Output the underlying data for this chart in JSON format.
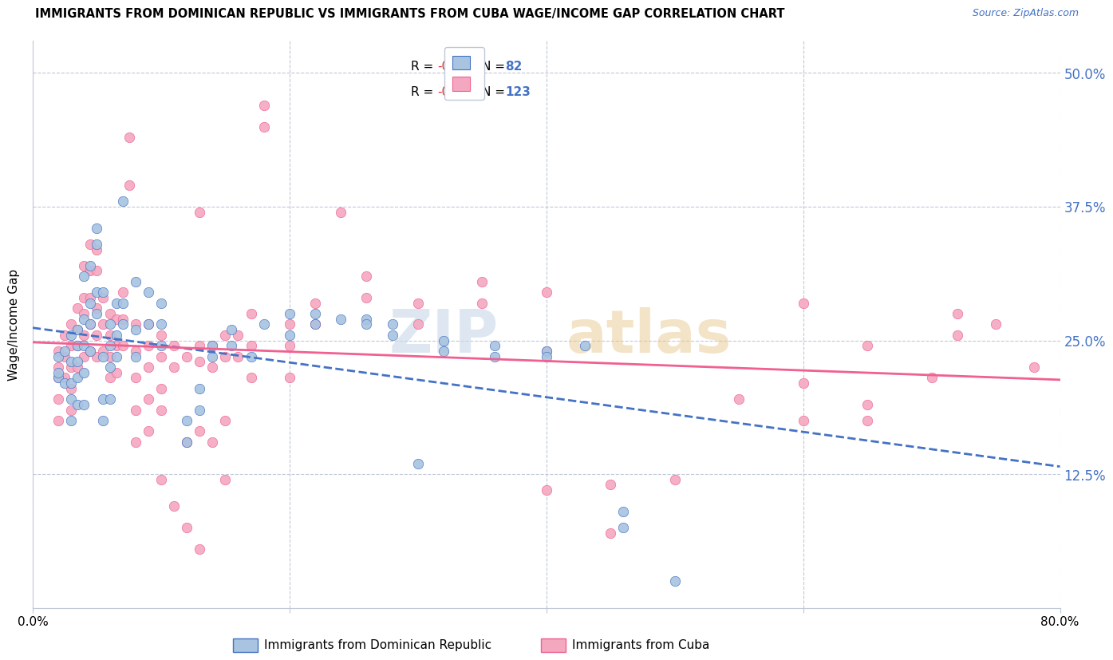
{
  "title": "IMMIGRANTS FROM DOMINICAN REPUBLIC VS IMMIGRANTS FROM CUBA WAGE/INCOME GAP CORRELATION CHART",
  "source": "Source: ZipAtlas.com",
  "ylabel": "Wage/Income Gap",
  "yticks": [
    0.0,
    0.125,
    0.25,
    0.375,
    0.5
  ],
  "ytick_labels": [
    "",
    "12.5%",
    "25.0%",
    "37.5%",
    "50.0%"
  ],
  "xlim": [
    0.0,
    0.8
  ],
  "ylim": [
    0.0,
    0.53
  ],
  "r1": "-0.006",
  "n1": "82",
  "r2": "-0.097",
  "n2": "123",
  "color_blue": "#a8c4e0",
  "color_pink": "#f4a8c0",
  "trendline_blue": "#4472c4",
  "trendline_pink": "#f06090",
  "watermark_zip_color": "#c8d8e8",
  "watermark_atlas_color": "#e8c890",
  "blue_scatter": [
    [
      0.02,
      0.235
    ],
    [
      0.02,
      0.215
    ],
    [
      0.02,
      0.22
    ],
    [
      0.025,
      0.24
    ],
    [
      0.025,
      0.21
    ],
    [
      0.03,
      0.255
    ],
    [
      0.03,
      0.23
    ],
    [
      0.03,
      0.21
    ],
    [
      0.03,
      0.195
    ],
    [
      0.03,
      0.175
    ],
    [
      0.035,
      0.26
    ],
    [
      0.035,
      0.245
    ],
    [
      0.035,
      0.23
    ],
    [
      0.035,
      0.215
    ],
    [
      0.035,
      0.19
    ],
    [
      0.04,
      0.31
    ],
    [
      0.04,
      0.27
    ],
    [
      0.04,
      0.245
    ],
    [
      0.04,
      0.22
    ],
    [
      0.04,
      0.19
    ],
    [
      0.045,
      0.32
    ],
    [
      0.045,
      0.285
    ],
    [
      0.045,
      0.265
    ],
    [
      0.045,
      0.24
    ],
    [
      0.05,
      0.355
    ],
    [
      0.05,
      0.34
    ],
    [
      0.05,
      0.295
    ],
    [
      0.05,
      0.275
    ],
    [
      0.055,
      0.295
    ],
    [
      0.055,
      0.235
    ],
    [
      0.055,
      0.195
    ],
    [
      0.055,
      0.175
    ],
    [
      0.06,
      0.265
    ],
    [
      0.06,
      0.245
    ],
    [
      0.06,
      0.225
    ],
    [
      0.06,
      0.195
    ],
    [
      0.065,
      0.285
    ],
    [
      0.065,
      0.255
    ],
    [
      0.065,
      0.235
    ],
    [
      0.07,
      0.38
    ],
    [
      0.07,
      0.285
    ],
    [
      0.07,
      0.265
    ],
    [
      0.08,
      0.305
    ],
    [
      0.08,
      0.26
    ],
    [
      0.08,
      0.235
    ],
    [
      0.09,
      0.295
    ],
    [
      0.09,
      0.265
    ],
    [
      0.1,
      0.285
    ],
    [
      0.1,
      0.265
    ],
    [
      0.1,
      0.245
    ],
    [
      0.12,
      0.175
    ],
    [
      0.12,
      0.155
    ],
    [
      0.13,
      0.205
    ],
    [
      0.13,
      0.185
    ],
    [
      0.14,
      0.245
    ],
    [
      0.14,
      0.235
    ],
    [
      0.155,
      0.26
    ],
    [
      0.155,
      0.245
    ],
    [
      0.17,
      0.235
    ],
    [
      0.18,
      0.265
    ],
    [
      0.2,
      0.275
    ],
    [
      0.2,
      0.255
    ],
    [
      0.22,
      0.275
    ],
    [
      0.22,
      0.265
    ],
    [
      0.24,
      0.27
    ],
    [
      0.26,
      0.27
    ],
    [
      0.26,
      0.265
    ],
    [
      0.28,
      0.265
    ],
    [
      0.28,
      0.255
    ],
    [
      0.3,
      0.135
    ],
    [
      0.32,
      0.25
    ],
    [
      0.32,
      0.24
    ],
    [
      0.36,
      0.245
    ],
    [
      0.36,
      0.235
    ],
    [
      0.4,
      0.24
    ],
    [
      0.4,
      0.235
    ],
    [
      0.43,
      0.245
    ],
    [
      0.46,
      0.09
    ],
    [
      0.46,
      0.075
    ],
    [
      0.5,
      0.025
    ]
  ],
  "pink_scatter": [
    [
      0.02,
      0.24
    ],
    [
      0.02,
      0.225
    ],
    [
      0.02,
      0.215
    ],
    [
      0.02,
      0.195
    ],
    [
      0.02,
      0.175
    ],
    [
      0.025,
      0.255
    ],
    [
      0.025,
      0.235
    ],
    [
      0.025,
      0.215
    ],
    [
      0.03,
      0.265
    ],
    [
      0.03,
      0.245
    ],
    [
      0.03,
      0.225
    ],
    [
      0.03,
      0.205
    ],
    [
      0.03,
      0.185
    ],
    [
      0.035,
      0.28
    ],
    [
      0.035,
      0.26
    ],
    [
      0.035,
      0.245
    ],
    [
      0.035,
      0.225
    ],
    [
      0.04,
      0.32
    ],
    [
      0.04,
      0.29
    ],
    [
      0.04,
      0.275
    ],
    [
      0.04,
      0.255
    ],
    [
      0.04,
      0.235
    ],
    [
      0.045,
      0.34
    ],
    [
      0.045,
      0.315
    ],
    [
      0.045,
      0.29
    ],
    [
      0.045,
      0.265
    ],
    [
      0.045,
      0.24
    ],
    [
      0.05,
      0.335
    ],
    [
      0.05,
      0.315
    ],
    [
      0.05,
      0.28
    ],
    [
      0.05,
      0.255
    ],
    [
      0.05,
      0.235
    ],
    [
      0.055,
      0.29
    ],
    [
      0.055,
      0.265
    ],
    [
      0.055,
      0.24
    ],
    [
      0.06,
      0.275
    ],
    [
      0.06,
      0.255
    ],
    [
      0.06,
      0.235
    ],
    [
      0.06,
      0.215
    ],
    [
      0.065,
      0.27
    ],
    [
      0.065,
      0.245
    ],
    [
      0.065,
      0.22
    ],
    [
      0.07,
      0.295
    ],
    [
      0.07,
      0.27
    ],
    [
      0.07,
      0.245
    ],
    [
      0.075,
      0.44
    ],
    [
      0.075,
      0.395
    ],
    [
      0.08,
      0.265
    ],
    [
      0.08,
      0.24
    ],
    [
      0.08,
      0.215
    ],
    [
      0.08,
      0.185
    ],
    [
      0.08,
      0.155
    ],
    [
      0.09,
      0.265
    ],
    [
      0.09,
      0.245
    ],
    [
      0.09,
      0.225
    ],
    [
      0.09,
      0.195
    ],
    [
      0.09,
      0.165
    ],
    [
      0.1,
      0.255
    ],
    [
      0.1,
      0.235
    ],
    [
      0.1,
      0.205
    ],
    [
      0.1,
      0.185
    ],
    [
      0.1,
      0.12
    ],
    [
      0.11,
      0.245
    ],
    [
      0.11,
      0.225
    ],
    [
      0.11,
      0.095
    ],
    [
      0.12,
      0.235
    ],
    [
      0.12,
      0.155
    ],
    [
      0.12,
      0.075
    ],
    [
      0.13,
      0.37
    ],
    [
      0.13,
      0.245
    ],
    [
      0.13,
      0.23
    ],
    [
      0.13,
      0.165
    ],
    [
      0.13,
      0.055
    ],
    [
      0.14,
      0.245
    ],
    [
      0.14,
      0.225
    ],
    [
      0.14,
      0.155
    ],
    [
      0.15,
      0.255
    ],
    [
      0.15,
      0.235
    ],
    [
      0.15,
      0.175
    ],
    [
      0.15,
      0.12
    ],
    [
      0.16,
      0.255
    ],
    [
      0.16,
      0.235
    ],
    [
      0.17,
      0.275
    ],
    [
      0.17,
      0.245
    ],
    [
      0.17,
      0.215
    ],
    [
      0.18,
      0.47
    ],
    [
      0.18,
      0.45
    ],
    [
      0.2,
      0.265
    ],
    [
      0.2,
      0.245
    ],
    [
      0.2,
      0.215
    ],
    [
      0.22,
      0.285
    ],
    [
      0.22,
      0.265
    ],
    [
      0.24,
      0.37
    ],
    [
      0.26,
      0.31
    ],
    [
      0.26,
      0.29
    ],
    [
      0.3,
      0.285
    ],
    [
      0.3,
      0.265
    ],
    [
      0.35,
      0.305
    ],
    [
      0.35,
      0.285
    ],
    [
      0.4,
      0.295
    ],
    [
      0.4,
      0.24
    ],
    [
      0.4,
      0.11
    ],
    [
      0.45,
      0.115
    ],
    [
      0.45,
      0.07
    ],
    [
      0.5,
      0.12
    ],
    [
      0.55,
      0.195
    ],
    [
      0.6,
      0.285
    ],
    [
      0.6,
      0.21
    ],
    [
      0.6,
      0.175
    ],
    [
      0.65,
      0.245
    ],
    [
      0.65,
      0.19
    ],
    [
      0.65,
      0.175
    ],
    [
      0.7,
      0.215
    ],
    [
      0.72,
      0.275
    ],
    [
      0.72,
      0.255
    ],
    [
      0.75,
      0.265
    ],
    [
      0.78,
      0.225
    ]
  ]
}
